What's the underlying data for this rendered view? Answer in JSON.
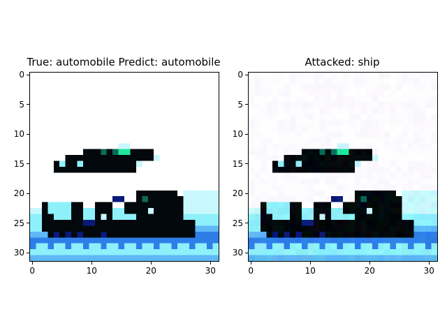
{
  "figure": {
    "left_title": "True: automobile  Predict: automobile",
    "right_title": "Attacked: ship",
    "x_ticks": [
      "0",
      "10",
      "20",
      "30"
    ],
    "y_ticks": [
      "0",
      "5",
      "10",
      "15",
      "20",
      "25",
      "30"
    ],
    "x_tick_values": [
      0,
      10,
      20,
      30
    ],
    "y_tick_values": [
      0,
      5,
      10,
      15,
      20,
      25,
      30
    ],
    "image_size": 32
  },
  "colors": {
    "background": "#ffffff",
    "car_dark": "#02080c",
    "car_teal": "#0b6a5a",
    "headlight": "#23e69a",
    "blue_dark": "#0a1a7a",
    "blue_mid": "#2f7ee8",
    "blue_light": "#5fb8f5",
    "cyan_light": "#8ef0fb",
    "cyan_pale": "#c8f8fd",
    "noise_tint": "#f6f2fb"
  }
}
